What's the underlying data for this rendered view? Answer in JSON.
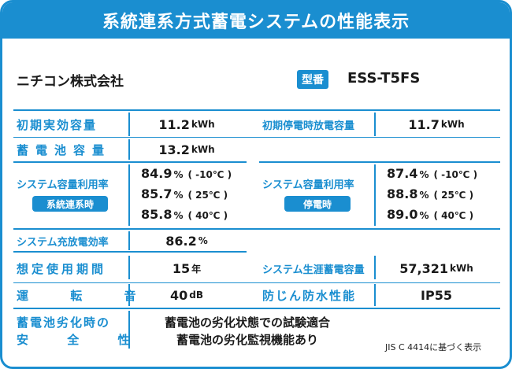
{
  "title": "系統連系方式蓄電システムの性能表示",
  "maker": "ニチコン株式会社",
  "model_label": "型番",
  "model_value": "ESS-T5FS",
  "rows": {
    "initial_capacity": {
      "label": "初期実効容量",
      "value": "11.2",
      "unit": "kWh"
    },
    "initial_outage_capacity": {
      "label": "初期停電時放電容量",
      "value": "11.7",
      "unit": "kWh"
    },
    "battery_capacity": {
      "label": "蓄電池容量",
      "value": "13.2",
      "unit": "kWh"
    },
    "utilization_grid": {
      "label": "システム容量利用率",
      "badge": "系統連系時",
      "entries": [
        {
          "value": "84.9",
          "unit": "%",
          "temp": "( -10℃ )"
        },
        {
          "value": "85.7",
          "unit": "%",
          "temp": "( 25℃ )"
        },
        {
          "value": "85.8",
          "unit": "%",
          "temp": "( 40℃ )"
        }
      ]
    },
    "utilization_outage": {
      "label": "システム容量利用率",
      "badge": "停電時",
      "entries": [
        {
          "value": "87.4",
          "unit": "%",
          "temp": "( -10℃ )"
        },
        {
          "value": "88.8",
          "unit": "%",
          "temp": "( 25℃ )"
        },
        {
          "value": "89.0",
          "unit": "%",
          "temp": "( 40℃ )"
        }
      ]
    },
    "efficiency": {
      "label": "システム充放電効率",
      "value": "86.2",
      "unit": "%"
    },
    "expected_period": {
      "label": "想定使用期間",
      "value": "15",
      "unit": "年"
    },
    "lifetime_storage": {
      "label": "システム生涯蓄電容量",
      "value": "57,321",
      "unit": "kWh"
    },
    "noise": {
      "label": "運 転 音",
      "value": "40",
      "unit": "dB"
    },
    "waterproof": {
      "label": "防じん防水性能",
      "value": "IP55"
    },
    "safety": {
      "label_line1": "蓄電池劣化時の",
      "label_line2": "安 全 性",
      "value_line1": "蓄電池の劣化状態での試験適合",
      "value_line2": "蓄電池の劣化監視機能あり"
    }
  },
  "footnote": "JIS C 4414に基づく表示",
  "colors": {
    "accent": "#1a8ed0"
  }
}
